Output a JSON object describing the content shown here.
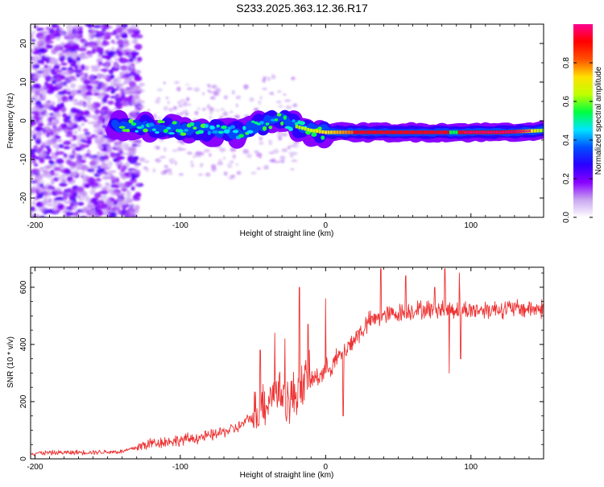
{
  "title": "S233.2025.363.12.36.R17",
  "chart_data": [
    {
      "type": "heatmap",
      "name": "spectrogram",
      "xlabel": "Height of straight line (km)",
      "ylabel": "Frequency (Hz)",
      "xlim": [
        -203,
        150
      ],
      "ylim": [
        -25,
        25
      ],
      "xticks": [
        -200,
        -100,
        0,
        100
      ],
      "yticks": [
        -20,
        -10,
        0,
        10,
        20
      ],
      "colorbar": {
        "label": "Normalized spectral amplitude",
        "range": [
          0.0,
          1.0
        ],
        "ticks": [
          "0.0",
          "0.2",
          "0.4",
          "0.6",
          "0.8"
        ],
        "tick_values": [
          0.0,
          0.2,
          0.4,
          0.6,
          0.8
        ]
      },
      "ridge": {
        "description_points": [
          [
            -140,
            -1.0
          ],
          [
            -120,
            -1.5
          ],
          [
            -100,
            -2.0
          ],
          [
            -80,
            -2.5
          ],
          [
            -60,
            -3.0
          ],
          [
            -45,
            -1.0
          ],
          [
            -30,
            0.5
          ],
          [
            -20,
            -1.5
          ],
          [
            -10,
            -2.5
          ],
          [
            0,
            -3.0
          ],
          [
            20,
            -3.0
          ],
          [
            50,
            -3.0
          ],
          [
            90,
            -3.0
          ],
          [
            120,
            -3.0
          ],
          [
            150,
            -2.5
          ]
        ]
      },
      "colorscale": [
        "#ffffff",
        "#c9a6f0",
        "#8800ff",
        "#2a00ff",
        "#0050ff",
        "#00e5ff",
        "#00ff40",
        "#c0ff00",
        "#ffe000",
        "#ff5000",
        "#ff0000",
        "#ff0090"
      ]
    },
    {
      "type": "line",
      "name": "snr",
      "xlabel": "Height of straight line (km)",
      "ylabel": "SNR (10 * v/v)",
      "xlim": [
        -203,
        150
      ],
      "ylim": [
        0,
        670
      ],
      "xticks": [
        -200,
        -100,
        0,
        100
      ],
      "yticks": [
        0,
        200,
        400,
        600
      ],
      "color": "#ee3333",
      "series_trend": [
        [
          -203,
          20
        ],
        [
          -140,
          25
        ],
        [
          -120,
          55
        ],
        [
          -100,
          65
        ],
        [
          -80,
          80
        ],
        [
          -60,
          110
        ],
        [
          -45,
          170
        ],
        [
          -35,
          250
        ],
        [
          -25,
          200
        ],
        [
          -15,
          260
        ],
        [
          -5,
          290
        ],
        [
          0,
          310
        ],
        [
          10,
          360
        ],
        [
          20,
          420
        ],
        [
          30,
          480
        ],
        [
          40,
          500
        ],
        [
          60,
          520
        ],
        [
          80,
          525
        ],
        [
          100,
          520
        ],
        [
          120,
          525
        ],
        [
          150,
          525
        ]
      ],
      "spikes": [
        [
          -45,
          380
        ],
        [
          -35,
          440
        ],
        [
          -28,
          420
        ],
        [
          -18,
          600
        ],
        [
          -12,
          470
        ],
        [
          0,
          560
        ],
        [
          12,
          150
        ],
        [
          38,
          665
        ],
        [
          55,
          640
        ],
        [
          75,
          600
        ],
        [
          82,
          665
        ],
        [
          85,
          300
        ],
        [
          92,
          650
        ],
        [
          93,
          350
        ]
      ]
    }
  ]
}
